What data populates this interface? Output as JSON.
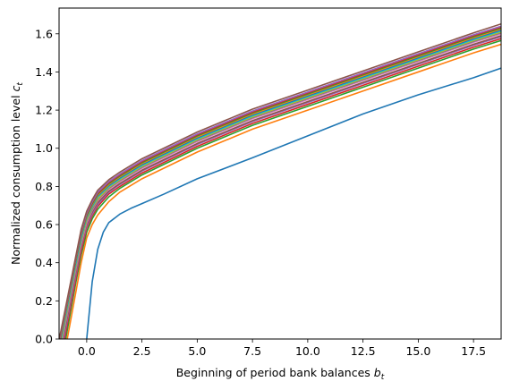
{
  "chart_data": {
    "type": "line",
    "title": "",
    "xlabel": "Beginning of period bank balances",
    "xlabel_var": "b",
    "xlabel_sub": "t",
    "ylabel": "Normalized consumption level",
    "ylabel_var": "c",
    "ylabel_sub": "t",
    "xlim": [
      -1.25,
      18.75
    ],
    "ylim": [
      0.0,
      1.735
    ],
    "xticks": [
      0.0,
      2.5,
      5.0,
      7.5,
      10.0,
      12.5,
      15.0,
      17.5
    ],
    "xtick_labels": [
      "0.0",
      "2.5",
      "5.0",
      "7.5",
      "10.0",
      "12.5",
      "15.0",
      "17.5"
    ],
    "yticks": [
      0.0,
      0.2,
      0.4,
      0.6,
      0.8,
      1.0,
      1.2,
      1.4,
      1.6
    ],
    "ytick_labels": [
      "0.0",
      "0.2",
      "0.4",
      "0.6",
      "0.8",
      "1.0",
      "1.2",
      "1.4",
      "1.6"
    ],
    "grid": false,
    "legend": "none",
    "series": [
      {
        "color": "#1f77b4",
        "points": [
          [
            0.0,
            0.0
          ],
          [
            0.25,
            0.3
          ],
          [
            0.5,
            0.47
          ],
          [
            0.75,
            0.56
          ],
          [
            1.0,
            0.61
          ],
          [
            1.5,
            0.655
          ],
          [
            2.0,
            0.685
          ],
          [
            2.5,
            0.71
          ],
          [
            3.5,
            0.76
          ],
          [
            5.0,
            0.84
          ],
          [
            7.5,
            0.95
          ],
          [
            10.0,
            1.065
          ],
          [
            12.5,
            1.18
          ],
          [
            15.0,
            1.28
          ],
          [
            17.5,
            1.37
          ],
          [
            18.75,
            1.42
          ]
        ]
      },
      {
        "color": "#ff7f0e",
        "points": [
          [
            -0.88,
            0.0
          ],
          [
            -0.5,
            0.24
          ],
          [
            -0.25,
            0.4
          ],
          [
            0.0,
            0.53
          ],
          [
            0.25,
            0.6
          ],
          [
            0.5,
            0.65
          ],
          [
            1.0,
            0.72
          ],
          [
            1.5,
            0.77
          ],
          [
            2.5,
            0.84
          ],
          [
            5.0,
            0.98
          ],
          [
            7.5,
            1.1
          ],
          [
            10.0,
            1.2
          ],
          [
            12.5,
            1.3
          ],
          [
            15.0,
            1.4
          ],
          [
            17.5,
            1.5
          ],
          [
            18.75,
            1.545
          ]
        ]
      },
      {
        "color": "#2ca02c",
        "points": [
          [
            -0.95,
            0.0
          ],
          [
            -0.5,
            0.29
          ],
          [
            -0.25,
            0.44
          ],
          [
            0.0,
            0.56
          ],
          [
            0.25,
            0.63
          ],
          [
            0.5,
            0.68
          ],
          [
            1.0,
            0.745
          ],
          [
            1.5,
            0.79
          ],
          [
            2.5,
            0.86
          ],
          [
            5.0,
            1.0
          ],
          [
            7.5,
            1.12
          ],
          [
            10.0,
            1.22
          ],
          [
            12.5,
            1.32
          ],
          [
            15.0,
            1.42
          ],
          [
            17.5,
            1.52
          ],
          [
            18.75,
            1.565
          ]
        ]
      },
      {
        "color": "#d62728",
        "points": [
          [
            -1.0,
            0.0
          ],
          [
            -0.5,
            0.31
          ],
          [
            -0.25,
            0.46
          ],
          [
            0.0,
            0.58
          ],
          [
            0.25,
            0.645
          ],
          [
            0.5,
            0.695
          ],
          [
            1.0,
            0.76
          ],
          [
            1.5,
            0.8
          ],
          [
            2.5,
            0.87
          ],
          [
            5.0,
            1.01
          ],
          [
            7.5,
            1.13
          ],
          [
            10.0,
            1.23
          ],
          [
            12.5,
            1.33
          ],
          [
            15.0,
            1.43
          ],
          [
            17.5,
            1.53
          ],
          [
            18.75,
            1.575
          ]
        ]
      },
      {
        "color": "#9467bd",
        "points": [
          [
            -1.04,
            0.0
          ],
          [
            -0.5,
            0.33
          ],
          [
            -0.25,
            0.48
          ],
          [
            0.0,
            0.59
          ],
          [
            0.25,
            0.655
          ],
          [
            0.5,
            0.705
          ],
          [
            1.0,
            0.77
          ],
          [
            1.5,
            0.81
          ],
          [
            2.5,
            0.88
          ],
          [
            5.0,
            1.02
          ],
          [
            7.5,
            1.14
          ],
          [
            10.0,
            1.24
          ],
          [
            12.5,
            1.34
          ],
          [
            15.0,
            1.44
          ],
          [
            17.5,
            1.54
          ],
          [
            18.75,
            1.585
          ]
        ]
      },
      {
        "color": "#8c564b",
        "points": [
          [
            -1.07,
            0.0
          ],
          [
            -0.5,
            0.345
          ],
          [
            -0.25,
            0.49
          ],
          [
            0.0,
            0.6
          ],
          [
            0.25,
            0.665
          ],
          [
            0.5,
            0.715
          ],
          [
            1.0,
            0.775
          ],
          [
            1.5,
            0.815
          ],
          [
            2.5,
            0.885
          ],
          [
            5.0,
            1.025
          ],
          [
            7.5,
            1.145
          ],
          [
            10.0,
            1.245
          ],
          [
            12.5,
            1.345
          ],
          [
            15.0,
            1.445
          ],
          [
            17.5,
            1.545
          ],
          [
            18.75,
            1.59
          ]
        ]
      },
      {
        "color": "#e377c2",
        "points": [
          [
            -1.1,
            0.0
          ],
          [
            -0.5,
            0.36
          ],
          [
            -0.25,
            0.5
          ],
          [
            0.0,
            0.61
          ],
          [
            0.25,
            0.675
          ],
          [
            0.5,
            0.725
          ],
          [
            1.0,
            0.785
          ],
          [
            1.5,
            0.825
          ],
          [
            2.5,
            0.895
          ],
          [
            5.0,
            1.035
          ],
          [
            7.5,
            1.155
          ],
          [
            10.0,
            1.255
          ],
          [
            12.5,
            1.355
          ],
          [
            15.0,
            1.455
          ],
          [
            17.5,
            1.555
          ],
          [
            18.75,
            1.6
          ]
        ]
      },
      {
        "color": "#7f7f7f",
        "points": [
          [
            -1.12,
            0.0
          ],
          [
            -0.5,
            0.37
          ],
          [
            -0.25,
            0.51
          ],
          [
            0.0,
            0.62
          ],
          [
            0.25,
            0.68
          ],
          [
            0.5,
            0.73
          ],
          [
            1.0,
            0.79
          ],
          [
            1.5,
            0.83
          ],
          [
            2.5,
            0.9
          ],
          [
            5.0,
            1.04
          ],
          [
            7.5,
            1.16
          ],
          [
            10.0,
            1.26
          ],
          [
            12.5,
            1.36
          ],
          [
            15.0,
            1.46
          ],
          [
            17.5,
            1.56
          ],
          [
            18.75,
            1.605
          ]
        ]
      },
      {
        "color": "#bcbd22",
        "points": [
          [
            -1.14,
            0.0
          ],
          [
            -0.5,
            0.38
          ],
          [
            -0.25,
            0.52
          ],
          [
            0.0,
            0.625
          ],
          [
            0.25,
            0.69
          ],
          [
            0.5,
            0.735
          ],
          [
            1.0,
            0.795
          ],
          [
            1.5,
            0.835
          ],
          [
            2.5,
            0.905
          ],
          [
            5.0,
            1.045
          ],
          [
            7.5,
            1.165
          ],
          [
            10.0,
            1.265
          ],
          [
            12.5,
            1.365
          ],
          [
            15.0,
            1.465
          ],
          [
            17.5,
            1.565
          ],
          [
            18.75,
            1.61
          ]
        ]
      },
      {
        "color": "#17becf",
        "points": [
          [
            -1.16,
            0.0
          ],
          [
            -0.5,
            0.39
          ],
          [
            -0.25,
            0.53
          ],
          [
            0.0,
            0.635
          ],
          [
            0.25,
            0.695
          ],
          [
            0.5,
            0.745
          ],
          [
            1.0,
            0.8
          ],
          [
            1.5,
            0.84
          ],
          [
            2.5,
            0.91
          ],
          [
            5.0,
            1.05
          ],
          [
            7.5,
            1.17
          ],
          [
            10.0,
            1.27
          ],
          [
            12.5,
            1.37
          ],
          [
            15.0,
            1.47
          ],
          [
            17.5,
            1.57
          ],
          [
            18.75,
            1.615
          ]
        ]
      },
      {
        "color": "#1f77b4",
        "points": [
          [
            -1.18,
            0.0
          ],
          [
            -0.5,
            0.4
          ],
          [
            -0.25,
            0.54
          ],
          [
            0.0,
            0.64
          ],
          [
            0.25,
            0.7
          ],
          [
            0.5,
            0.75
          ],
          [
            1.0,
            0.805
          ],
          [
            1.5,
            0.845
          ],
          [
            2.5,
            0.915
          ],
          [
            5.0,
            1.055
          ],
          [
            7.5,
            1.175
          ],
          [
            10.0,
            1.275
          ],
          [
            12.5,
            1.375
          ],
          [
            15.0,
            1.475
          ],
          [
            17.5,
            1.575
          ],
          [
            18.75,
            1.62
          ]
        ]
      },
      {
        "color": "#ff7f0e",
        "points": [
          [
            -1.19,
            0.0
          ],
          [
            -0.5,
            0.41
          ],
          [
            -0.25,
            0.55
          ],
          [
            0.0,
            0.645
          ],
          [
            0.25,
            0.705
          ],
          [
            0.5,
            0.755
          ],
          [
            1.0,
            0.81
          ],
          [
            1.5,
            0.85
          ],
          [
            2.5,
            0.92
          ],
          [
            5.0,
            1.06
          ],
          [
            7.5,
            1.18
          ],
          [
            10.0,
            1.28
          ],
          [
            12.5,
            1.38
          ],
          [
            15.0,
            1.48
          ],
          [
            17.5,
            1.58
          ],
          [
            18.75,
            1.625
          ]
        ]
      },
      {
        "color": "#2ca02c",
        "points": [
          [
            -1.2,
            0.0
          ],
          [
            -0.5,
            0.415
          ],
          [
            -0.25,
            0.555
          ],
          [
            0.0,
            0.65
          ],
          [
            0.25,
            0.71
          ],
          [
            0.5,
            0.76
          ],
          [
            1.0,
            0.815
          ],
          [
            1.5,
            0.855
          ],
          [
            2.5,
            0.925
          ],
          [
            5.0,
            1.065
          ],
          [
            7.5,
            1.185
          ],
          [
            10.0,
            1.285
          ],
          [
            12.5,
            1.385
          ],
          [
            15.0,
            1.485
          ],
          [
            17.5,
            1.585
          ],
          [
            18.75,
            1.63
          ]
        ]
      },
      {
        "color": "#d62728",
        "points": [
          [
            -1.21,
            0.0
          ],
          [
            -0.5,
            0.42
          ],
          [
            -0.25,
            0.56
          ],
          [
            0.0,
            0.655
          ],
          [
            0.25,
            0.715
          ],
          [
            0.5,
            0.765
          ],
          [
            1.0,
            0.82
          ],
          [
            1.5,
            0.86
          ],
          [
            2.5,
            0.93
          ],
          [
            5.0,
            1.07
          ],
          [
            7.5,
            1.19
          ],
          [
            10.0,
            1.29
          ],
          [
            12.5,
            1.39
          ],
          [
            15.0,
            1.49
          ],
          [
            17.5,
            1.59
          ],
          [
            18.75,
            1.635
          ]
        ]
      },
      {
        "color": "#9467bd",
        "points": [
          [
            -1.22,
            0.0
          ],
          [
            -0.5,
            0.425
          ],
          [
            -0.25,
            0.565
          ],
          [
            0.0,
            0.66
          ],
          [
            0.25,
            0.72
          ],
          [
            0.5,
            0.77
          ],
          [
            1.0,
            0.825
          ],
          [
            1.5,
            0.865
          ],
          [
            2.5,
            0.935
          ],
          [
            5.0,
            1.075
          ],
          [
            7.5,
            1.195
          ],
          [
            10.0,
            1.295
          ],
          [
            12.5,
            1.395
          ],
          [
            15.0,
            1.495
          ],
          [
            17.5,
            1.595
          ],
          [
            18.75,
            1.64
          ]
        ]
      },
      {
        "color": "#8c564b",
        "points": [
          [
            -1.24,
            0.0
          ],
          [
            -0.5,
            0.43
          ],
          [
            -0.25,
            0.575
          ],
          [
            0.0,
            0.67
          ],
          [
            0.25,
            0.73
          ],
          [
            0.5,
            0.78
          ],
          [
            1.0,
            0.835
          ],
          [
            1.5,
            0.875
          ],
          [
            2.5,
            0.945
          ],
          [
            5.0,
            1.085
          ],
          [
            7.5,
            1.205
          ],
          [
            10.0,
            1.305
          ],
          [
            12.5,
            1.405
          ],
          [
            15.0,
            1.505
          ],
          [
            17.5,
            1.605
          ],
          [
            18.75,
            1.652
          ]
        ]
      }
    ]
  }
}
